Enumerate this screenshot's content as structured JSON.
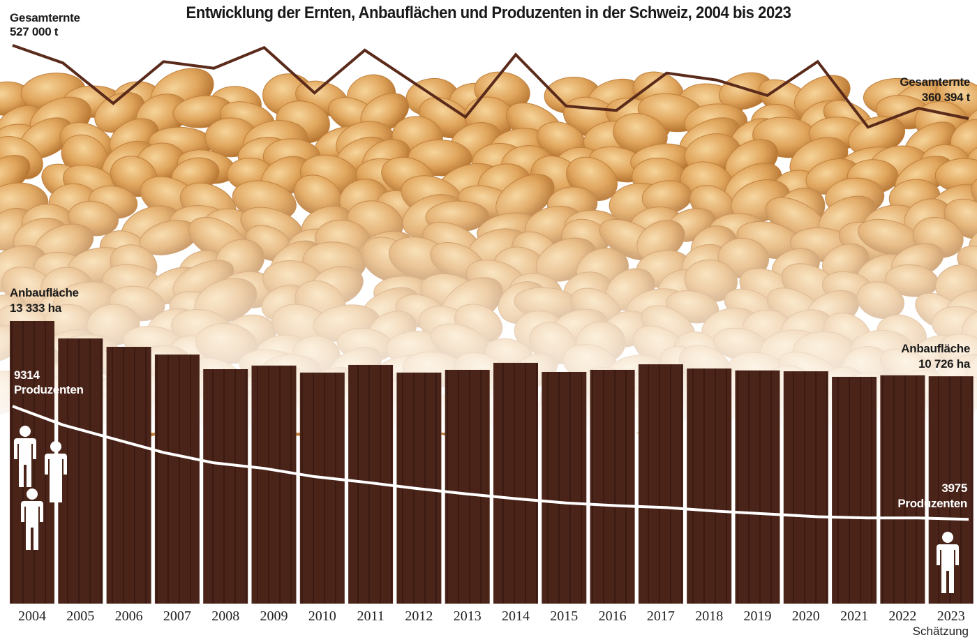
{
  "chart_data": {
    "type": "bar",
    "title": "Entwicklung der Ernten, Anbauflächen und Produzenten in der Schweiz, 2004 bis 2023",
    "categories": [
      "2004",
      "2005",
      "2006",
      "2007",
      "2008",
      "2009",
      "2010",
      "2011",
      "2012",
      "2013",
      "2014",
      "2015",
      "2016",
      "2017",
      "2018",
      "2019",
      "2020",
      "2021",
      "2022",
      "2023"
    ],
    "category_note": "Schätzung",
    "series": [
      {
        "name": "Anbaufläche",
        "type": "bar",
        "unit": "ha",
        "color": "#4a2419",
        "values": [
          13333,
          12510,
          12115,
          11750,
          11060,
          11230,
          10900,
          11260,
          10900,
          11030,
          11360,
          10930,
          11030,
          11290,
          11090,
          11000,
          10960,
          10700,
          10770,
          10726
        ]
      },
      {
        "name": "Produzenten",
        "type": "line",
        "color": "#ffffff",
        "values": [
          9314,
          8430,
          7780,
          7130,
          6640,
          6380,
          5990,
          5730,
          5440,
          5180,
          4950,
          4750,
          4620,
          4530,
          4360,
          4230,
          4100,
          4040,
          4040,
          3975
        ]
      },
      {
        "name": "Gesamternte",
        "type": "line",
        "unit": "t",
        "color": "#5a2a1a",
        "values": [
          527000,
          487000,
          395000,
          490000,
          475000,
          522000,
          419000,
          516000,
          440000,
          364000,
          506000,
          389000,
          379000,
          464000,
          448000,
          413000,
          490000,
          341000,
          384000,
          360394
        ]
      }
    ],
    "annotations": {
      "harvest_start": {
        "label": "Gesamternte",
        "value": "527 000 t"
      },
      "harvest_end": {
        "label": "Gesamternte",
        "value": "360 394 t"
      },
      "area_start": {
        "label": "Anbaufläche",
        "value": "13 333 ha"
      },
      "area_end": {
        "label": "Anbaufläche",
        "value": "10 726 ha"
      },
      "producers_start": {
        "value": "9314",
        "label": "Produzenten"
      },
      "producers_end": {
        "value": "3975",
        "label": "Produzenten"
      }
    },
    "legend": "none",
    "grid": false,
    "icons": [
      "person-icon",
      "potato-background"
    ]
  }
}
